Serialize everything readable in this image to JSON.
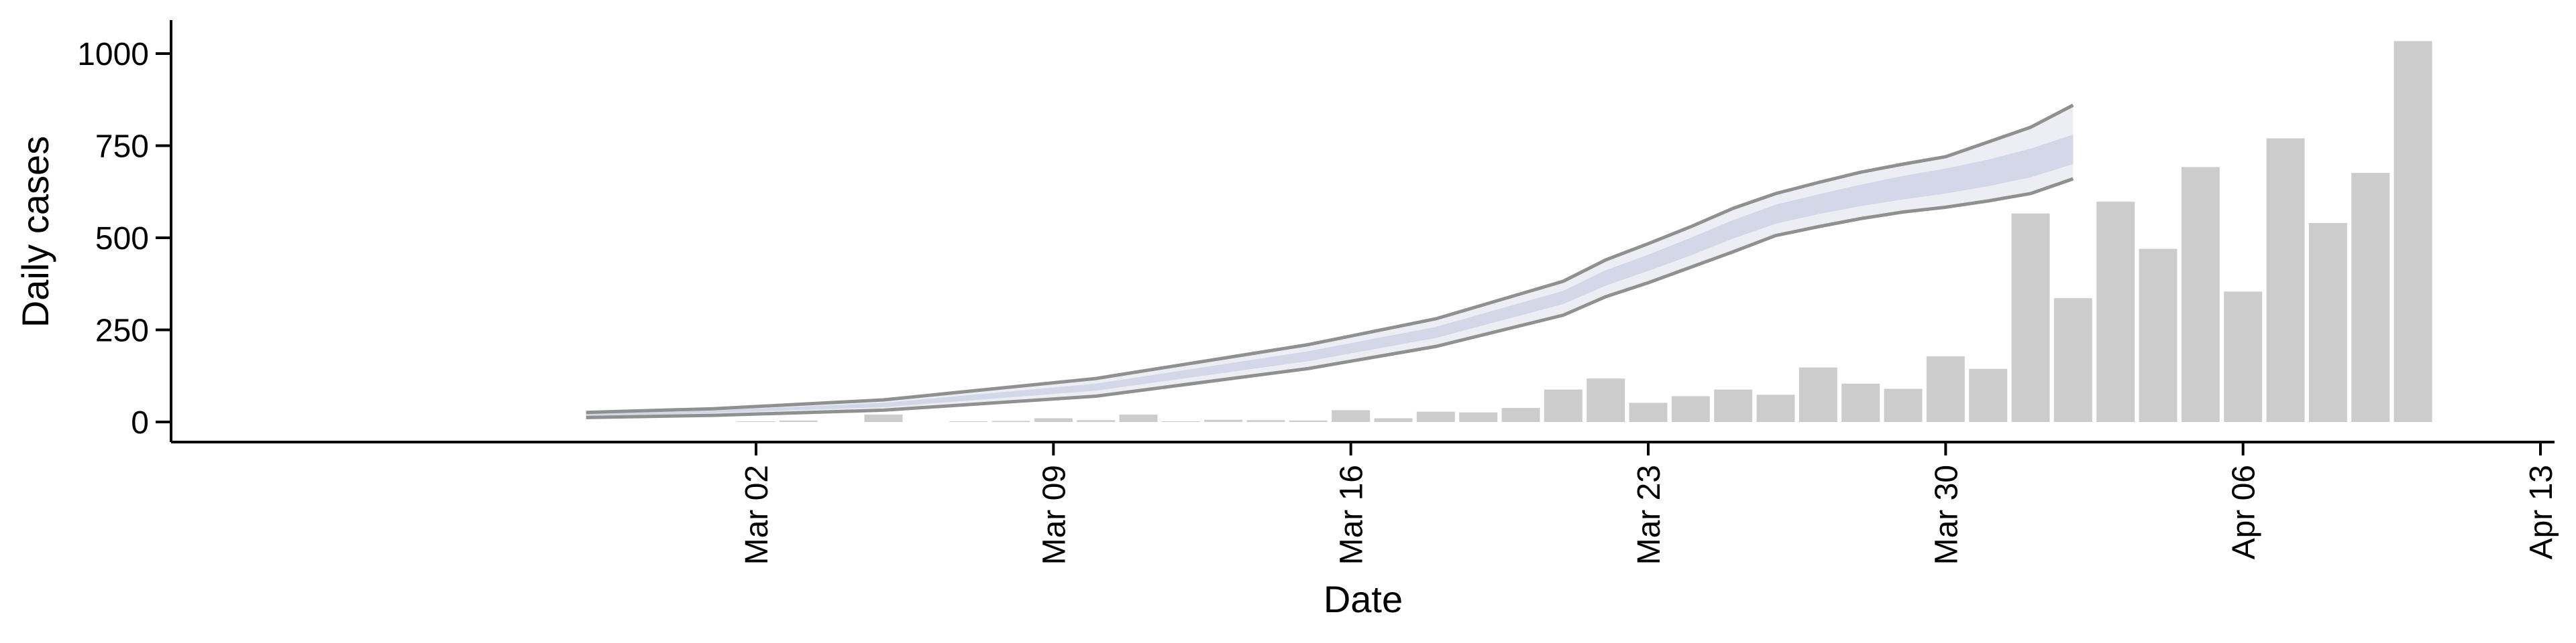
{
  "chart_data": {
    "type": "bar",
    "xlabel": "Date",
    "ylabel": "Daily cases",
    "x_ticks": [
      "Mar 02",
      "Mar 09",
      "Mar 16",
      "Mar 23",
      "Mar 30",
      "Apr 06",
      "Apr 13"
    ],
    "y_ticks": [
      "0",
      "250",
      "500",
      "750",
      "1000"
    ],
    "x_range": [
      "2020-02-24",
      "2020-04-13"
    ],
    "ylim": [
      0,
      1000
    ],
    "grid": false,
    "bars": {
      "dates": [
        "2020-02-29",
        "2020-03-01",
        "2020-03-02",
        "2020-03-03",
        "2020-03-04",
        "2020-03-05",
        "2020-03-06",
        "2020-03-07",
        "2020-03-08",
        "2020-03-09",
        "2020-03-10",
        "2020-03-11",
        "2020-03-12",
        "2020-03-13",
        "2020-03-14",
        "2020-03-15",
        "2020-03-16",
        "2020-03-17",
        "2020-03-18",
        "2020-03-19",
        "2020-03-20",
        "2020-03-21",
        "2020-03-22",
        "2020-03-23",
        "2020-03-24",
        "2020-03-25",
        "2020-03-26",
        "2020-03-27",
        "2020-03-28",
        "2020-03-29",
        "2020-03-30",
        "2020-03-31",
        "2020-04-01",
        "2020-04-02",
        "2020-04-03",
        "2020-04-04",
        "2020-04-05",
        "2020-04-06",
        "2020-04-07",
        "2020-04-08",
        "2020-04-09",
        "2020-04-10",
        "2020-04-11"
      ],
      "values": [
        0,
        0,
        2,
        4,
        0,
        20,
        0,
        2,
        3,
        10,
        5,
        20,
        2,
        6,
        5,
        4,
        32,
        10,
        28,
        26,
        38,
        88,
        118,
        52,
        70,
        88,
        74,
        148,
        104,
        90,
        178,
        144,
        566,
        336,
        598,
        470,
        692,
        354,
        770,
        540,
        676,
        1034,
        0
      ]
    },
    "projection": {
      "dates": [
        "2020-02-27",
        "2020-03-01",
        "2020-03-05",
        "2020-03-10",
        "2020-03-15",
        "2020-03-18",
        "2020-03-21",
        "2020-03-22",
        "2020-03-23",
        "2020-03-24",
        "2020-03-25",
        "2020-03-26",
        "2020-03-27",
        "2020-03-28",
        "2020-03-29",
        "2020-03-30",
        "2020-03-31",
        "2020-04-01",
        "2020-04-02"
      ],
      "outer_lower": [
        12,
        18,
        32,
        70,
        145,
        205,
        290,
        340,
        378,
        420,
        462,
        506,
        530,
        552,
        570,
        583,
        600,
        620,
        660
      ],
      "inner_lower": [
        16,
        24,
        40,
        85,
        165,
        228,
        320,
        370,
        410,
        452,
        498,
        538,
        564,
        586,
        604,
        620,
        640,
        664,
        700
      ],
      "median": [
        19,
        27,
        46,
        94,
        178,
        242,
        338,
        392,
        430,
        474,
        520,
        562,
        588,
        612,
        632,
        650,
        670,
        700,
        735
      ],
      "inner_upper": [
        22,
        31,
        52,
        104,
        192,
        258,
        356,
        412,
        454,
        500,
        548,
        590,
        618,
        644,
        668,
        688,
        712,
        742,
        780
      ],
      "outer_upper": [
        26,
        36,
        60,
        118,
        210,
        280,
        382,
        440,
        484,
        530,
        580,
        620,
        650,
        678,
        700,
        720,
        760,
        800,
        860
      ]
    }
  }
}
